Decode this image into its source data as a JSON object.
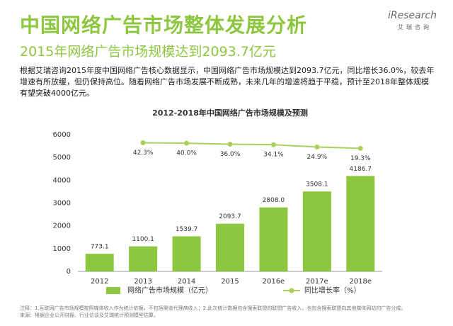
{
  "header": {
    "title": "中国网络广告市场整体发展分析",
    "subtitle": "2015年网络广告市场规模达到2093.7亿元",
    "logo": "iResearch",
    "logo_cn": "艾瑞咨询"
  },
  "description": "根据艾瑞咨询2015年度中国网络广告核心数据显示，中国网络广告市场规模达到2093.7亿元，同比增长36.0%，较去年增速有所放缓，但仍保持高位。随着网络广告市场发展不断成熟，未来几年的增速将趋于平稳，预计至2018年整体规模有望突破4000亿元。",
  "chart_data": {
    "type": "bar_line",
    "title": "2012-2018年中国网络广告市场规模及预测",
    "categories": [
      "2012",
      "2013",
      "2014",
      "2015",
      "2016e",
      "2017e",
      "2018e"
    ],
    "series": [
      {
        "name": "网络广告市场规模（亿元）",
        "color": "#8dc63f",
        "type": "bar",
        "values": [
          773.1,
          1100.1,
          1539.7,
          2093.7,
          2808.0,
          3508.1,
          4186.7
        ],
        "value_labels": [
          "773.1",
          "1100.1",
          "1539.7",
          "2093.7",
          "2808.0",
          "3508.1",
          "4186.7"
        ]
      },
      {
        "name": "同比增长率（%）",
        "color": "#a8d05c",
        "type": "line",
        "axis": "y2",
        "values": [
          null,
          42.3,
          40.0,
          36.0,
          34.1,
          24.9,
          19.3
        ],
        "value_labels": [
          null,
          "42.3%",
          "40.0%",
          "36.0%",
          "34.1%",
          "24.9%",
          "19.3%"
        ]
      }
    ],
    "ylim": [
      0,
      6000
    ],
    "yticks": [
      0,
      1000,
      2000,
      3000,
      4000,
      5000,
      6000
    ],
    "y2lim": [
      -480,
      75
    ],
    "grid": false,
    "legend": "bottom"
  },
  "notes": [
    "注释：1.互联网广告市场规模按照媒体收入作为统计依据，不包括渠道代理商收入；2.此次统计数据包含搜索联盟的联盟广告收入，也包含搜索联盟向其他媒体网站的广告分成。",
    "来源：根据企业公开财报、行业访谈及艾瑞统计预测模型估算。"
  ]
}
